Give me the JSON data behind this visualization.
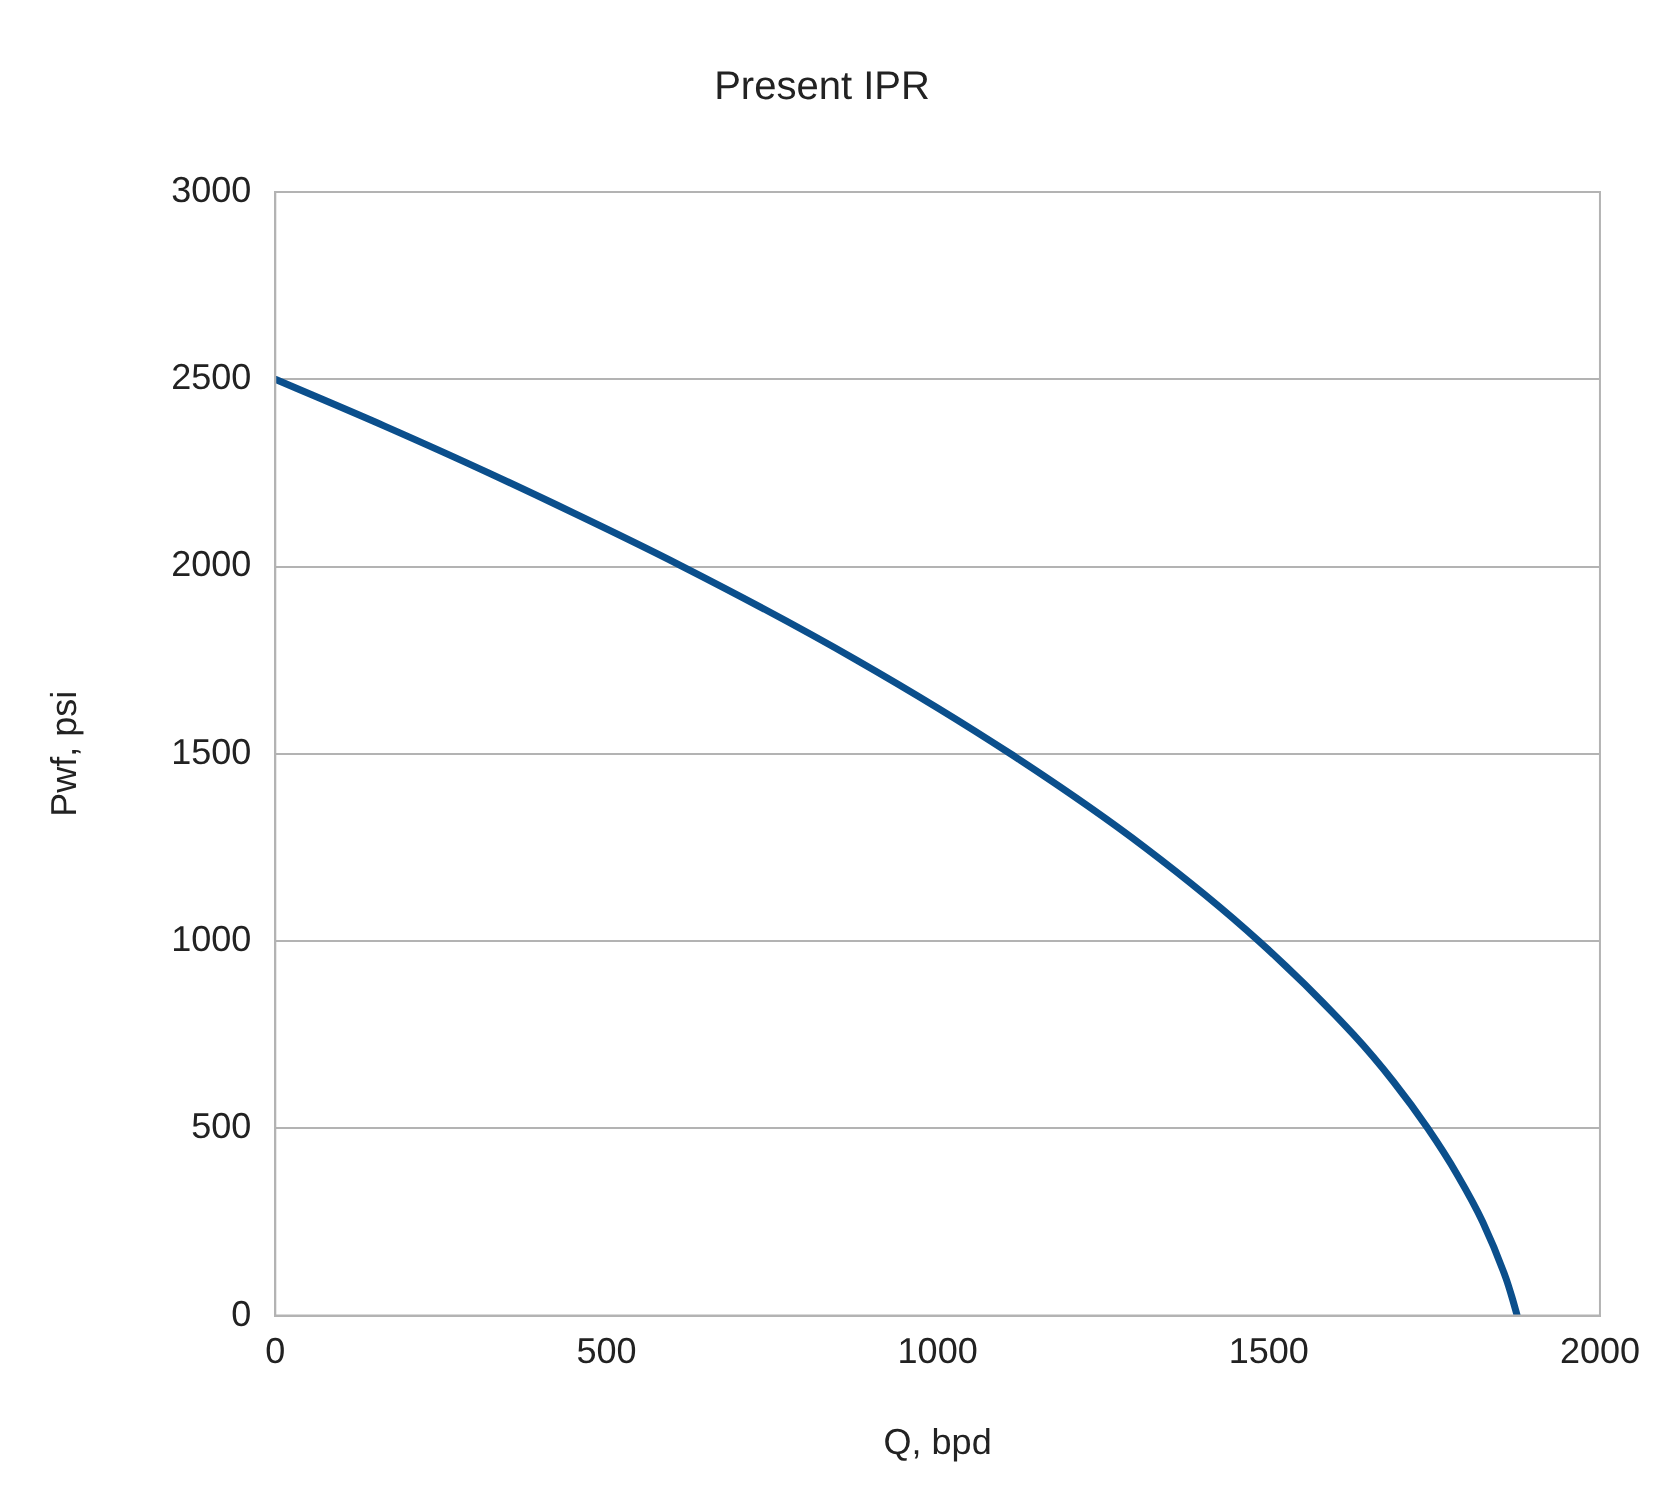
{
  "chart_data": {
    "type": "line",
    "title": "Present IPR",
    "xlabel": "Q, bpd",
    "ylabel": "Pwf, psi",
    "series": [
      {
        "color": "#0b4f8c",
        "x": [
          0,
          165,
          322,
          615,
          878,
          1110,
          1313,
          1485,
          1628,
          1688,
          1740,
          1785,
          1823,
          1858,
          1867,
          1875
        ],
        "values": [
          2500,
          2375,
          2250,
          2000,
          1750,
          1500,
          1250,
          1000,
          750,
          625,
          500,
          375,
          250,
          100,
          50,
          0
        ]
      }
    ],
    "xlim": [
      0,
      2000
    ],
    "xticks": [
      0,
      500,
      1000,
      1500,
      2000
    ],
    "ylim": [
      0,
      3000
    ],
    "yticks": [
      0,
      500,
      1000,
      1500,
      2000,
      2500,
      3000
    ],
    "grid": "y",
    "legend": false,
    "marker": "none",
    "line_style": "solid"
  }
}
